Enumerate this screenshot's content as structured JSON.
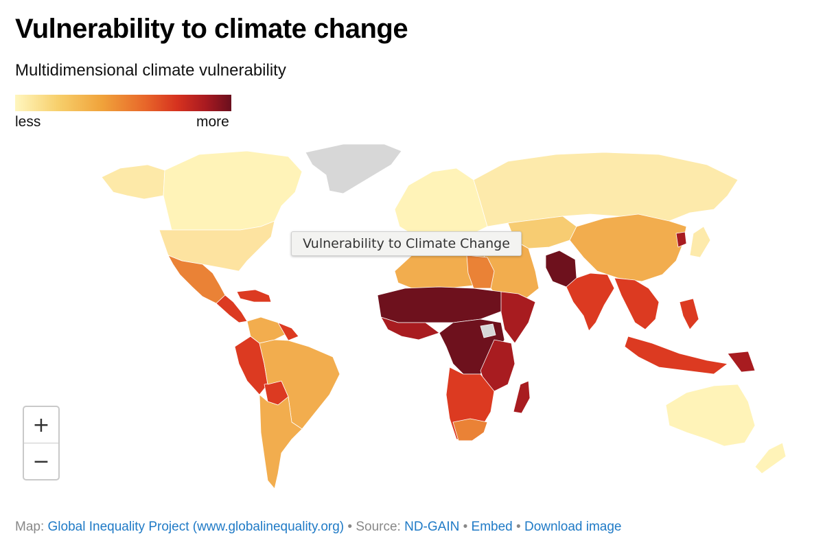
{
  "title": "Vulnerability to climate change",
  "subtitle": "Multidimensional climate vulnerability",
  "legend": {
    "low_label": "less",
    "high_label": "more",
    "gradient": [
      "#fff6bf",
      "#f7cf6b",
      "#f0a33b",
      "#e8672a",
      "#d6321f",
      "#a91a20",
      "#6a0f1e"
    ]
  },
  "tooltip": {
    "text": "Vulnerability to Climate Change"
  },
  "zoom": {
    "in_label": "+",
    "out_label": "−"
  },
  "footer": {
    "map_prefix": "Map: ",
    "map_link": "Global Inequality Project (www.globalinequality.org)",
    "source_sep": " • Source: ",
    "source_link": "ND-GAIN",
    "sep1": " • ",
    "embed_link": "Embed",
    "sep2": "  • ",
    "download_link": "Download image"
  },
  "colors": {
    "very_low": "#fff6bf",
    "low": "#fde6a2",
    "medium": "#f2ad4e",
    "elevated": "#ea8236",
    "high": "#dc3a21",
    "very_high": "#a81c20",
    "extreme": "#6e111d",
    "no_data": "#d7d7d7"
  }
}
